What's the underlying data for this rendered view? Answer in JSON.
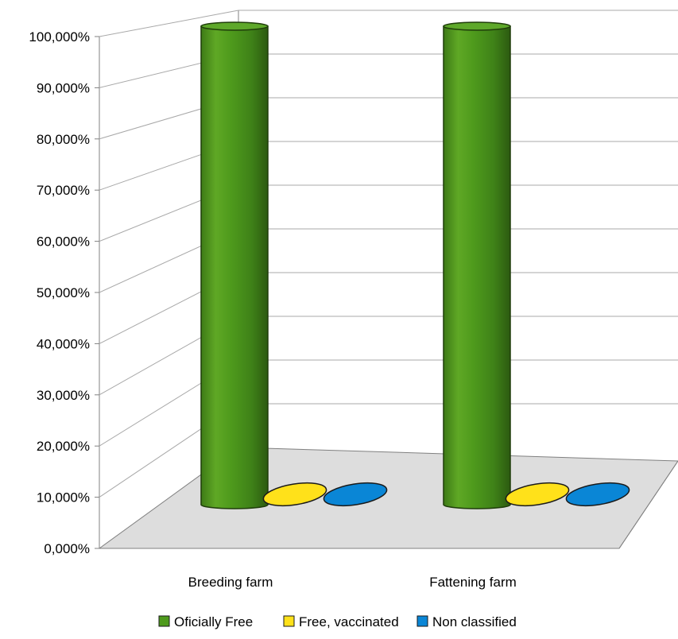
{
  "chart_data": {
    "type": "bar",
    "style": "3d-cylinder",
    "categories": [
      "Breeding farm",
      "Fattening farm"
    ],
    "series": [
      {
        "name": "Oficially Free",
        "color": "#4e9a1c",
        "values": [
          100,
          100
        ]
      },
      {
        "name": "Free, vaccinated",
        "color": "#ffe11a",
        "values": [
          0,
          0
        ]
      },
      {
        "name": "Non classified",
        "color": "#0a86d6",
        "values": [
          0,
          0
        ]
      }
    ],
    "ylim": [
      0,
      100
    ],
    "yticks": [
      "0,000%",
      "10,000%",
      "20,000%",
      "30,000%",
      "40,000%",
      "50,000%",
      "60,000%",
      "70,000%",
      "80,000%",
      "90,000%",
      "100,000%"
    ],
    "grid": true,
    "legend": "bottom",
    "title": "",
    "xlabel": "",
    "ylabel": ""
  }
}
